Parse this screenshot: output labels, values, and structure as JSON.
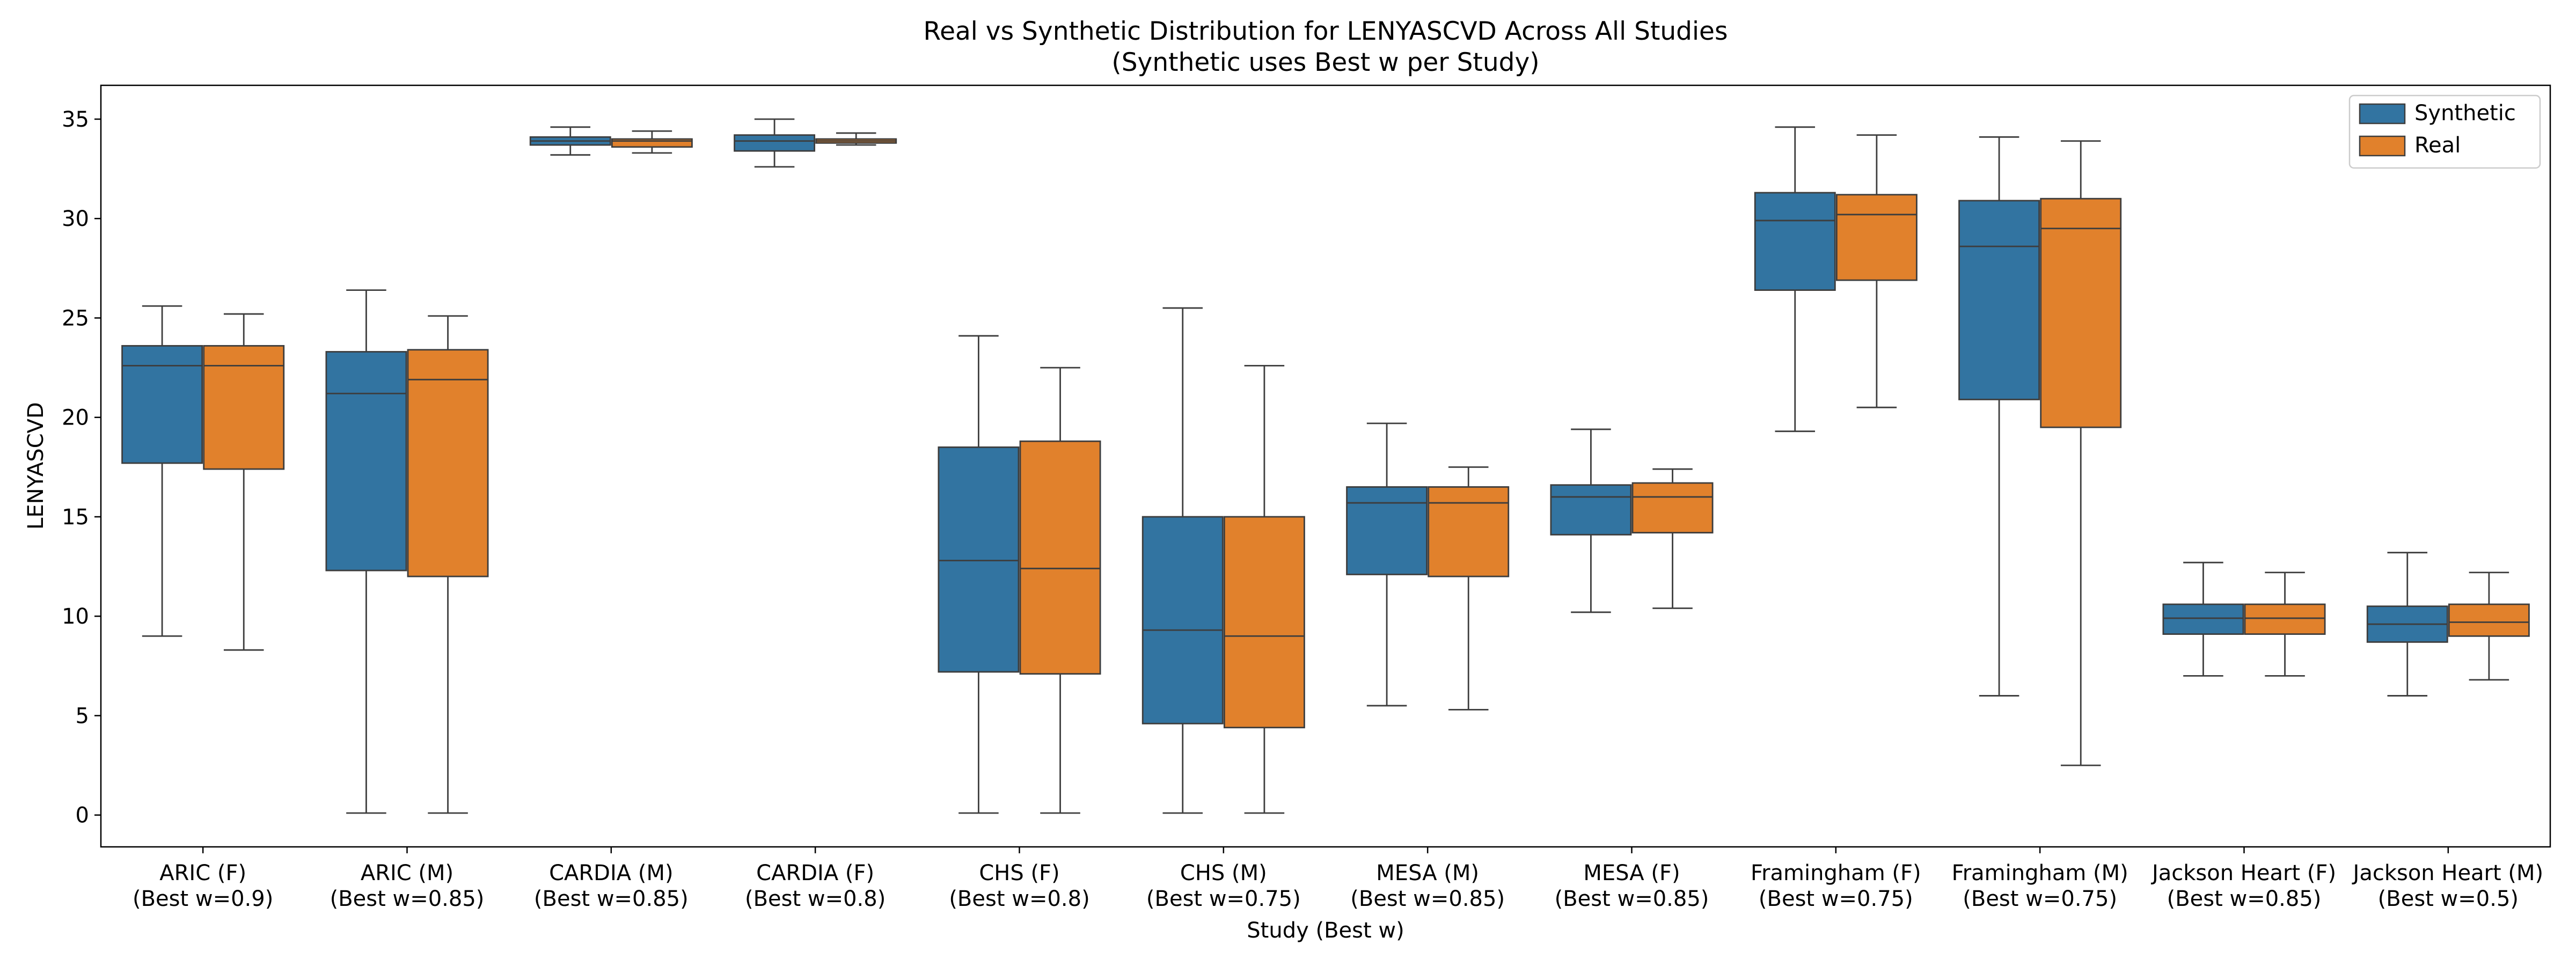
{
  "chart_data": {
    "type": "box",
    "title": "Real vs Synthetic Distribution for LENYASCVD Across All Studies",
    "subtitle": "(Synthetic uses Best w per Study)",
    "xlabel": "Study (Best w)",
    "ylabel": "LENYASCVD",
    "ylim": [
      -1.6,
      36.7
    ],
    "yticks": [
      0,
      5,
      10,
      15,
      20,
      25,
      30,
      35
    ],
    "legend": {
      "position": "top-right",
      "entries": [
        "Synthetic",
        "Real"
      ]
    },
    "colors": {
      "Synthetic": "#3274a1",
      "Real": "#e1812c",
      "line": "#3d3d3d"
    },
    "categories": [
      {
        "name": "ARIC (F)",
        "best_w": "(Best w=0.9)"
      },
      {
        "name": "ARIC (M)",
        "best_w": "(Best w=0.85)"
      },
      {
        "name": "CARDIA (M)",
        "best_w": "(Best w=0.85)"
      },
      {
        "name": "CARDIA (F)",
        "best_w": "(Best w=0.8)"
      },
      {
        "name": "CHS (F)",
        "best_w": "(Best w=0.8)"
      },
      {
        "name": "CHS (M)",
        "best_w": "(Best w=0.75)"
      },
      {
        "name": "MESA (M)",
        "best_w": "(Best w=0.85)"
      },
      {
        "name": "MESA (F)",
        "best_w": "(Best w=0.85)"
      },
      {
        "name": "Framingham (F)",
        "best_w": "(Best w=0.75)"
      },
      {
        "name": "Framingham (M)",
        "best_w": "(Best w=0.75)"
      },
      {
        "name": "Jackson Heart (F)",
        "best_w": "(Best w=0.85)"
      },
      {
        "name": "Jackson Heart (M)",
        "best_w": "(Best w=0.5)"
      }
    ],
    "series": [
      {
        "name": "Synthetic",
        "boxes": [
          {
            "whislo": 9.0,
            "q1": 17.7,
            "med": 22.6,
            "q3": 23.6,
            "whishi": 25.6
          },
          {
            "whislo": 0.1,
            "q1": 12.3,
            "med": 21.2,
            "q3": 23.3,
            "whishi": 26.4
          },
          {
            "whislo": 33.2,
            "q1": 33.7,
            "med": 33.9,
            "q3": 34.1,
            "whishi": 34.6
          },
          {
            "whislo": 32.6,
            "q1": 33.4,
            "med": 33.9,
            "q3": 34.2,
            "whishi": 35.0
          },
          {
            "whislo": 0.1,
            "q1": 7.2,
            "med": 12.8,
            "q3": 18.5,
            "whishi": 24.1
          },
          {
            "whislo": 0.1,
            "q1": 4.6,
            "med": 9.3,
            "q3": 15.0,
            "whishi": 25.5
          },
          {
            "whislo": 5.5,
            "q1": 12.1,
            "med": 15.7,
            "q3": 16.5,
            "whishi": 19.7
          },
          {
            "whislo": 10.2,
            "q1": 14.1,
            "med": 16.0,
            "q3": 16.6,
            "whishi": 19.4
          },
          {
            "whislo": 19.3,
            "q1": 26.4,
            "med": 29.9,
            "q3": 31.3,
            "whishi": 34.6
          },
          {
            "whislo": 6.0,
            "q1": 20.9,
            "med": 28.6,
            "q3": 30.9,
            "whishi": 34.1
          },
          {
            "whislo": 7.0,
            "q1": 9.1,
            "med": 9.9,
            "q3": 10.6,
            "whishi": 12.7
          },
          {
            "whislo": 6.0,
            "q1": 8.7,
            "med": 9.6,
            "q3": 10.5,
            "whishi": 13.2
          }
        ]
      },
      {
        "name": "Real",
        "boxes": [
          {
            "whislo": 8.3,
            "q1": 17.4,
            "med": 22.6,
            "q3": 23.6,
            "whishi": 25.2
          },
          {
            "whislo": 0.1,
            "q1": 12.0,
            "med": 21.9,
            "q3": 23.4,
            "whishi": 25.1
          },
          {
            "whislo": 33.3,
            "q1": 33.6,
            "med": 33.9,
            "q3": 34.0,
            "whishi": 34.4
          },
          {
            "whislo": 33.7,
            "q1": 33.8,
            "med": 33.9,
            "q3": 34.0,
            "whishi": 34.3
          },
          {
            "whislo": 0.1,
            "q1": 7.1,
            "med": 12.4,
            "q3": 18.8,
            "whishi": 22.5
          },
          {
            "whislo": 0.1,
            "q1": 4.4,
            "med": 9.0,
            "q3": 15.0,
            "whishi": 22.6
          },
          {
            "whislo": 5.3,
            "q1": 12.0,
            "med": 15.7,
            "q3": 16.5,
            "whishi": 17.5
          },
          {
            "whislo": 10.4,
            "q1": 14.2,
            "med": 16.0,
            "q3": 16.7,
            "whishi": 17.4
          },
          {
            "whislo": 20.5,
            "q1": 26.9,
            "med": 30.2,
            "q3": 31.2,
            "whishi": 34.2
          },
          {
            "whislo": 2.5,
            "q1": 19.5,
            "med": 29.5,
            "q3": 31.0,
            "whishi": 33.9
          },
          {
            "whislo": 7.0,
            "q1": 9.1,
            "med": 9.9,
            "q3": 10.6,
            "whishi": 12.2
          },
          {
            "whislo": 6.8,
            "q1": 9.0,
            "med": 9.7,
            "q3": 10.6,
            "whishi": 12.2
          }
        ]
      }
    ]
  }
}
